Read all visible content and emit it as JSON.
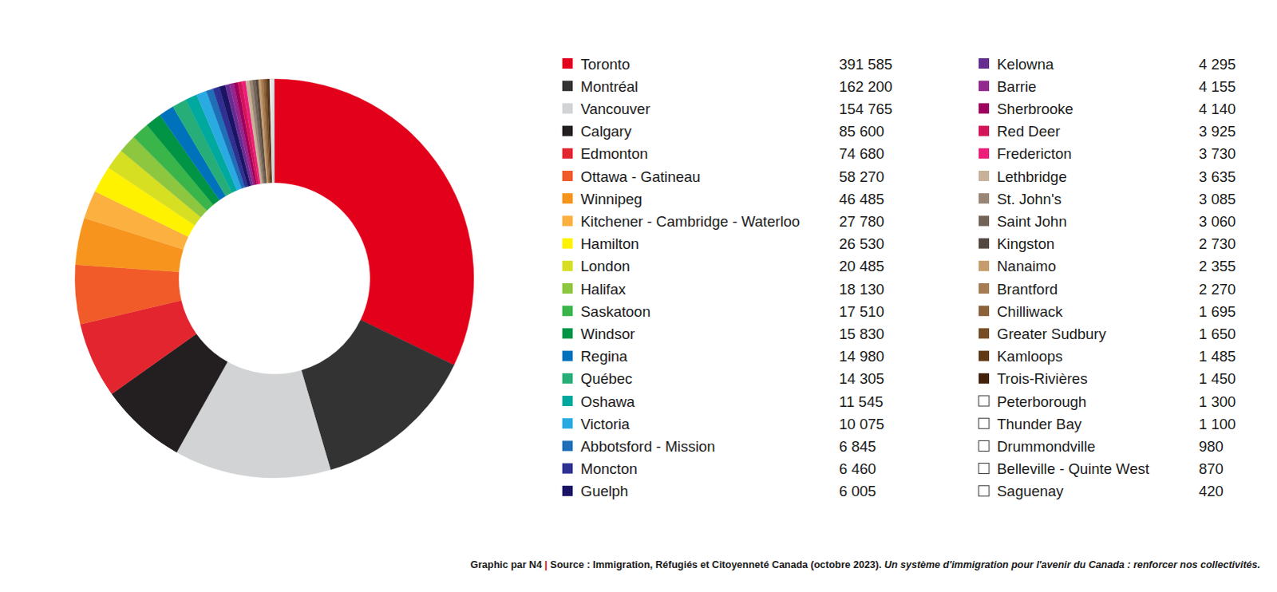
{
  "chart_data": {
    "type": "pie",
    "categories": [
      "Toronto",
      "Montréal",
      "Vancouver",
      "Calgary",
      "Edmonton",
      "Ottawa - Gatineau",
      "Winnipeg",
      "Kitchener - Cambridge - Waterloo",
      "Hamilton",
      "London",
      "Halifax",
      "Saskatoon",
      "Windsor",
      "Regina",
      "Québec",
      "Oshawa",
      "Victoria",
      "Abbotsford - Mission",
      "Moncton",
      "Guelph",
      "Kelowna",
      "Barrie",
      "Sherbrooke",
      "Red Deer",
      "Fredericton",
      "Lethbridge",
      "St. John's",
      "Saint John",
      "Kingston",
      "Nanaimo",
      "Brantford",
      "Chilliwack",
      "Greater Sudbury",
      "Kamloops",
      "Trois-Rivières",
      "Peterborough",
      "Thunder Bay",
      "Drummondville",
      "Belleville - Quinte West",
      "Saguenay"
    ],
    "values": [
      391585,
      162200,
      154765,
      85600,
      74680,
      58270,
      46485,
      27780,
      26530,
      20485,
      18130,
      17510,
      15830,
      14980,
      14305,
      11545,
      10075,
      6845,
      6460,
      6005,
      4295,
      4155,
      4140,
      3925,
      3730,
      3635,
      3085,
      3060,
      2730,
      2355,
      2270,
      1695,
      1650,
      1485,
      1450,
      1300,
      1100,
      980,
      870,
      420
    ],
    "value_labels": [
      "391 585",
      "162 200",
      "154 765",
      "85 600",
      "74 680",
      "58 270",
      "46 485",
      "27 780",
      "26 530",
      "20 485",
      "18 130",
      "17 510",
      "15 830",
      "14 980",
      "14 305",
      "11 545",
      "10 075",
      "6 845",
      "6 460",
      "6 005",
      "4 295",
      "4 155",
      "4 140",
      "3 925",
      "3 730",
      "3 635",
      "3 085",
      "3 060",
      "2 730",
      "2 355",
      "2 270",
      "1 695",
      "1 650",
      "1 485",
      "1 450",
      "1 300",
      "1 100",
      "980",
      "870",
      "420"
    ],
    "colors": [
      "#e2001a",
      "#333333",
      "#d1d3d4",
      "#231f20",
      "#e32530",
      "#f15a29",
      "#f7941d",
      "#fbb040",
      "#fff200",
      "#d7df23",
      "#8dc63f",
      "#39b54a",
      "#009444",
      "#0072bc",
      "#27ae78",
      "#00a99d",
      "#29abe2",
      "#1e6fb8",
      "#2e3192",
      "#1b1464",
      "#662d91",
      "#92278f",
      "#9e005d",
      "#d4145a",
      "#ed1e79",
      "#c7b299",
      "#998675",
      "#736357",
      "#534741",
      "#c69c6d",
      "#a67c52",
      "#8c6239",
      "#754c24",
      "#603813",
      "#42210b",
      "#ffffff",
      "#ffffff",
      "#ffffff",
      "#ffffff",
      "#ffffff"
    ],
    "legend": "right",
    "data_labels": false,
    "annotations": [
      "Graphic par N4",
      "|",
      "Source : Immigration, Réfugiés et Citoyenneté Canada (octobre 2023).",
      "Un système d'immigration pour l'avenir du Canada : renforcer nos collectivités."
    ]
  }
}
